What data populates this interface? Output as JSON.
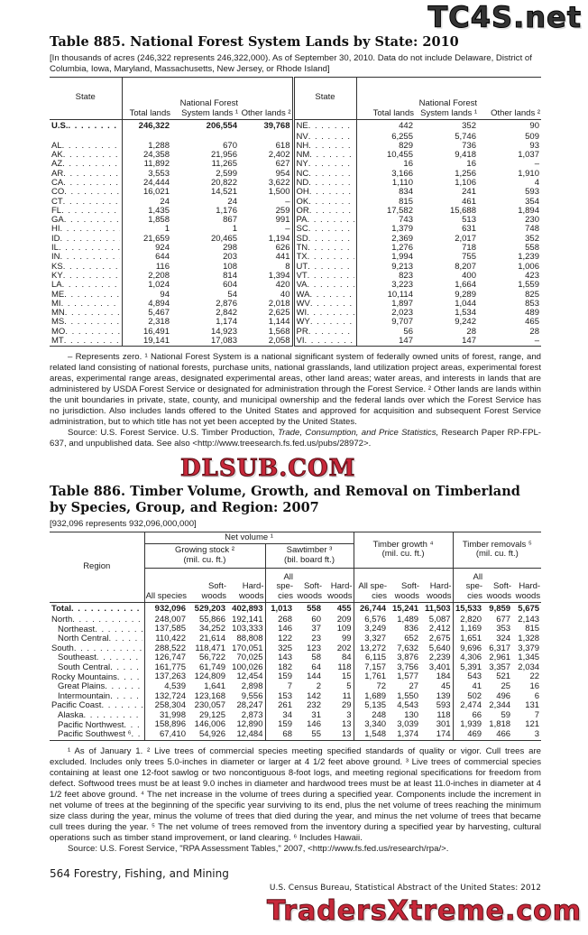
{
  "watermarks": {
    "top": "TC4S.net",
    "middle": "DLSUB.COM",
    "bottom": "TradersXtreme.com"
  },
  "t885": {
    "title": "Table 885. National Forest System Lands by State: 2010",
    "subtitle": "[In thousands of acres (246,322 represents 246,322,000). As of September 30, 2010. Data do not include Delaware, District of Columbia, Iowa, Maryland, Massachusetts, New Jersey, or Rhode Island]",
    "headers": {
      "state": "State",
      "total": "Total lands",
      "nfs": "National Forest System lands ¹",
      "other": "Other lands ²"
    },
    "left": [
      [
        "U.S.",
        "246,322",
        "206,554",
        "39,768"
      ],
      [
        "",
        "",
        "",
        ""
      ],
      [
        "AL",
        "1,288",
        "670",
        "618"
      ],
      [
        "AK",
        "24,358",
        "21,956",
        "2,402"
      ],
      [
        "AZ",
        "11,892",
        "11,265",
        "627"
      ],
      [
        "AR",
        "3,553",
        "2,599",
        "954"
      ],
      [
        "CA",
        "24,444",
        "20,822",
        "3,622"
      ],
      [
        "CO",
        "16,021",
        "14,521",
        "1,500"
      ],
      [
        "CT",
        "24",
        "24",
        "–"
      ],
      [
        "FL",
        "1,435",
        "1,176",
        "259"
      ],
      [
        "GA",
        "1,858",
        "867",
        "991"
      ],
      [
        "HI",
        "1",
        "1",
        "–"
      ],
      [
        "ID",
        "21,659",
        "20,465",
        "1,194"
      ],
      [
        "IL",
        "924",
        "298",
        "626"
      ],
      [
        "IN",
        "644",
        "203",
        "441"
      ],
      [
        "KS",
        "116",
        "108",
        "8"
      ],
      [
        "KY",
        "2,208",
        "814",
        "1,394"
      ],
      [
        "LA",
        "1,024",
        "604",
        "420"
      ],
      [
        "ME",
        "94",
        "54",
        "40"
      ],
      [
        "MI",
        "4,894",
        "2,876",
        "2,018"
      ],
      [
        "MN",
        "5,467",
        "2,842",
        "2,625"
      ],
      [
        "MS",
        "2,318",
        "1,174",
        "1,144"
      ],
      [
        "MO",
        "16,491",
        "14,923",
        "1,568"
      ],
      [
        "MT",
        "19,141",
        "17,083",
        "2,058"
      ]
    ],
    "right": [
      [
        "NE",
        "442",
        "352",
        "90"
      ],
      [
        "NV",
        "6,255",
        "5,746",
        "509"
      ],
      [
        "NH",
        "829",
        "736",
        "93"
      ],
      [
        "NM",
        "10,455",
        "9,418",
        "1,037"
      ],
      [
        "NY",
        "16",
        "16",
        "–"
      ],
      [
        "NC",
        "3,166",
        "1,256",
        "1,910"
      ],
      [
        "ND",
        "1,110",
        "1,106",
        "4"
      ],
      [
        "OH",
        "834",
        "241",
        "593"
      ],
      [
        "OK",
        "815",
        "461",
        "354"
      ],
      [
        "OR",
        "17,582",
        "15,688",
        "1,894"
      ],
      [
        "PA",
        "743",
        "513",
        "230"
      ],
      [
        "SC",
        "1,379",
        "631",
        "748"
      ],
      [
        "SD",
        "2,369",
        "2,017",
        "352"
      ],
      [
        "TN",
        "1,276",
        "718",
        "558"
      ],
      [
        "TX",
        "1,994",
        "755",
        "1,239"
      ],
      [
        "UT",
        "9,213",
        "8,207",
        "1,006"
      ],
      [
        "VT",
        "823",
        "400",
        "423"
      ],
      [
        "VA",
        "3,223",
        "1,664",
        "1,559"
      ],
      [
        "WA",
        "10,114",
        "9,289",
        "825"
      ],
      [
        "WV",
        "1,897",
        "1,044",
        "853"
      ],
      [
        "WI",
        "2,023",
        "1,534",
        "489"
      ],
      [
        "WY",
        "9,707",
        "9,242",
        "465"
      ],
      [
        "PR",
        "56",
        "28",
        "28"
      ],
      [
        "VI",
        "147",
        "147",
        "–"
      ]
    ],
    "notes": "– Represents zero. ¹ National Forest System is a national significant system of federally owned units of forest, range, and related land consisting of national forests, purchase units, national grasslands, land utilization project areas, experimental forest areas, experimental range areas, designated experimental areas, other land areas; water areas, and interests in lands that are administered by USDA Forest Service or designated for administration through the Forest Service. ² Other lands are lands within the unit boundaries in private, state, county, and municipal ownership and the federal lands over which the Forest Service has no jurisdiction. Also includes lands offered to the United States and approved for acquisition and subsequent Forest Service administration, but to which title has not yet been accepted by the United States.",
    "source_pre": "Source: U.S. Forest Service. U.S. Timber Production, ",
    "source_italic": "Trade, Consumption, and Price Statistics,",
    "source_post": " Research Paper RP-FPL-637, and unpublished data. See also <http://www.treesearch.fs.fed.us/pubs/28972>."
  },
  "t886": {
    "title": "Table 886. Timber Volume, Growth, and Removal on Timberland by Species, Group, and Region: 2007",
    "subtitle": "[932,096 represents 932,096,000,000]",
    "headers": {
      "region": "Region",
      "net": "Net volume ¹",
      "gs": "Growing stock ²",
      "gs_unit": "(mil. cu. ft.)",
      "saw": "Sawtimber ³",
      "saw_unit": "(bil. board ft.)",
      "growth": "Timber growth ⁴",
      "growth_unit": "(mil. cu. ft.)",
      "rem": "Timber removals ⁵",
      "rem_unit": "(mil. cu. ft.)",
      "cols": [
        "All species",
        "Soft- woods",
        "Hard- woods",
        "All spe- cies",
        "Soft- woods",
        "Hard- woods",
        "All spe- cies",
        "Soft- woods",
        "Hard- woods",
        "All spe- cies",
        "Soft- woods",
        "Hard- woods"
      ]
    },
    "rows": [
      {
        "label": "Total",
        "bold": true,
        "indent": false,
        "v": [
          "932,096",
          "529,203",
          "402,893",
          "1,013",
          "558",
          "455",
          "26,744",
          "15,241",
          "11,503",
          "15,533",
          "9,859",
          "5,675"
        ]
      },
      {
        "label": "North",
        "indent": false,
        "v": [
          "248,007",
          "55,866",
          "192,141",
          "268",
          "60",
          "209",
          "6,576",
          "1,489",
          "5,087",
          "2,820",
          "677",
          "2,143"
        ]
      },
      {
        "label": "Northeast",
        "indent": true,
        "v": [
          "137,585",
          "34,252",
          "103,333",
          "146",
          "37",
          "109",
          "3,249",
          "836",
          "2,412",
          "1,169",
          "353",
          "815"
        ]
      },
      {
        "label": "North Central",
        "indent": true,
        "v": [
          "110,422",
          "21,614",
          "88,808",
          "122",
          "23",
          "99",
          "3,327",
          "652",
          "2,675",
          "1,651",
          "324",
          "1,328"
        ]
      },
      {
        "label": "South",
        "indent": false,
        "v": [
          "288,522",
          "118,471",
          "170,051",
          "325",
          "123",
          "202",
          "13,272",
          "7,632",
          "5,640",
          "9,696",
          "6,317",
          "3,379"
        ]
      },
      {
        "label": "Southeast",
        "indent": true,
        "v": [
          "126,747",
          "56,722",
          "70,025",
          "143",
          "58",
          "84",
          "6,115",
          "3,876",
          "2,239",
          "4,306",
          "2,961",
          "1,345"
        ]
      },
      {
        "label": "South Central",
        "indent": true,
        "v": [
          "161,775",
          "61,749",
          "100,026",
          "182",
          "64",
          "118",
          "7,157",
          "3,756",
          "3,401",
          "5,391",
          "3,357",
          "2,034"
        ]
      },
      {
        "label": "Rocky Mountains",
        "indent": false,
        "v": [
          "137,263",
          "124,809",
          "12,454",
          "159",
          "144",
          "15",
          "1,761",
          "1,577",
          "184",
          "543",
          "521",
          "22"
        ]
      },
      {
        "label": "Great Plains",
        "indent": true,
        "v": [
          "4,539",
          "1,641",
          "2,898",
          "7",
          "2",
          "5",
          "72",
          "27",
          "45",
          "41",
          "25",
          "16"
        ]
      },
      {
        "label": "Intermountain",
        "indent": true,
        "v": [
          "132,724",
          "123,168",
          "9,556",
          "153",
          "142",
          "11",
          "1,689",
          "1,550",
          "139",
          "502",
          "496",
          "6"
        ]
      },
      {
        "label": "Pacific Coast",
        "indent": false,
        "v": [
          "258,304",
          "230,057",
          "28,247",
          "261",
          "232",
          "29",
          "5,135",
          "4,543",
          "593",
          "2,474",
          "2,344",
          "131"
        ]
      },
      {
        "label": "Alaska",
        "indent": true,
        "v": [
          "31,998",
          "29,125",
          "2,873",
          "34",
          "31",
          "3",
          "248",
          "130",
          "118",
          "66",
          "59",
          "7"
        ]
      },
      {
        "label": "Pacific Northwest",
        "indent": true,
        "v": [
          "158,896",
          "146,006",
          "12,890",
          "159",
          "146",
          "13",
          "3,340",
          "3,039",
          "301",
          "1,939",
          "1,818",
          "121"
        ]
      },
      {
        "label": "Pacific Southwest ⁶",
        "indent": true,
        "v": [
          "67,410",
          "54,926",
          "12,484",
          "68",
          "55",
          "13",
          "1,548",
          "1,374",
          "174",
          "469",
          "466",
          "3"
        ]
      }
    ],
    "notes": "¹ As of January 1. ² Live trees of commercial species meeting specified standards of quality or vigor. Cull trees are excluded. Includes only trees 5.0-inches in diameter or larger at 4 1/2 feet above ground. ³ Live trees of commercial species containing at least one 12-foot sawlog or two noncontiguous 8-foot logs, and meeting regional specifications for freedom from defect. Softwood trees must be at least 9.0 inches in diameter and hardwood trees must be at least 11.0-inches in diameter at 4 1/2 feet above ground. ⁴ The net increase in the volume of trees during a specified year. Components include the increment in net volume of trees at the beginning of the specific year surviving to its end, plus the net volume of trees reaching the minimum size class during the year, minus the volume of trees that died during the year, and minus the net volume of trees that became cull trees during the year. ⁵ The net volume of trees removed from the inventory during a specified year by harvesting, cultural operations such as timber stand improvement, or land clearing. ⁶ Includes Hawaii.",
    "source": "Source: U.S. Forest Service, \"RPA Assessment Tables,\" 2007, <http://www.fs.fed.us/research/rpa/>."
  },
  "footer": {
    "page": "564  Forestry, Fishing, and Mining",
    "publication": "U.S. Census Bureau, Statistical Abstract of the United States: 2012"
  }
}
